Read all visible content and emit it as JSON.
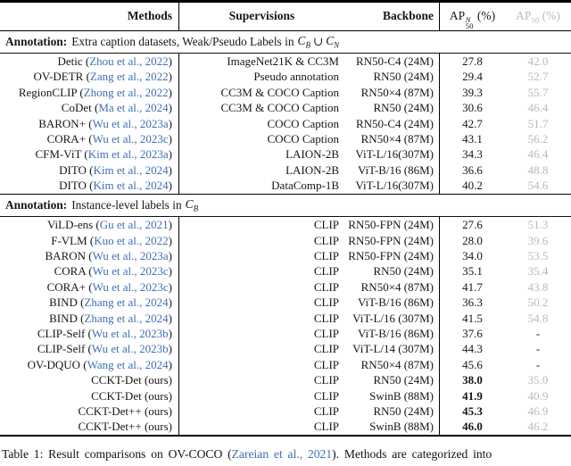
{
  "colors": {
    "citation": "#3e6fb2",
    "muted": "#b9b9b9"
  },
  "header": {
    "methods": "Methods",
    "supervisions": "Supervisions",
    "backbone": "Backbone",
    "ap_novel": {
      "base": "AP",
      "sup": "N",
      "sub": "50",
      "suffix": "(%)"
    },
    "ap_all": {
      "base": "AP",
      "sub": "50",
      "suffix": "(%)"
    }
  },
  "sections": [
    {
      "label": "Annotation:",
      "text": "Extra caption datasets, Weak/Pseudo Labels in",
      "math_tokens": [
        {
          "t": "var",
          "v": "C",
          "s": "B"
        },
        {
          "t": "op",
          "v": "∪"
        },
        {
          "t": "var",
          "v": "C",
          "s": "N"
        }
      ],
      "rows": [
        {
          "method_pre": "Detic (",
          "citation": "Zhou et al., 2022",
          "method_post": ")",
          "supervision": "ImageNet21K & CC3M",
          "backbone": "RN50-C4 (24M)",
          "ap_novel": "27.8",
          "ap_all": "42.0",
          "bold_novel": false
        },
        {
          "method_pre": "OV-DETR (",
          "citation": "Zang et al., 2022",
          "method_post": ")",
          "supervision": "Pseudo annotation",
          "backbone": "RN50 (24M)",
          "ap_novel": "29.4",
          "ap_all": "52.7",
          "bold_novel": false
        },
        {
          "method_pre": "RegionCLIP (",
          "citation": "Zhong et al., 2022",
          "method_post": ")",
          "supervision": "CC3M & COCO Caption",
          "backbone": "RN50×4 (87M)",
          "ap_novel": "39.3",
          "ap_all": "55.7",
          "bold_novel": false
        },
        {
          "method_pre": "CoDet (",
          "citation": "Ma et al., 2024",
          "method_post": ")",
          "supervision": "CC3M & COCO Caption",
          "backbone": "RN50 (24M)",
          "ap_novel": "30.6",
          "ap_all": "46.4",
          "bold_novel": false
        },
        {
          "method_pre": "BARON+ (",
          "citation": "Wu et al., 2023a",
          "method_post": ")",
          "supervision": "COCO Caption",
          "backbone": "RN50-C4 (24M)",
          "ap_novel": "42.7",
          "ap_all": "51.7",
          "bold_novel": false
        },
        {
          "method_pre": "CORA+ (",
          "citation": "Wu et al., 2023c",
          "method_post": ")",
          "supervision": "COCO Caption",
          "backbone": "RN50×4 (87M)",
          "ap_novel": "43.1",
          "ap_all": "56.2",
          "bold_novel": false
        },
        {
          "method_pre": "CFM-ViT (",
          "citation": "Kim et al., 2023a",
          "method_post": ")",
          "supervision": "LAION-2B",
          "backbone": "ViT-L/16(307M)",
          "ap_novel": "34.3",
          "ap_all": "46.4",
          "bold_novel": false
        },
        {
          "method_pre": "DITO (",
          "citation": "Kim et al., 2024",
          "method_post": ")",
          "supervision": "LAION-2B",
          "backbone": "ViT-B/16 (86M)",
          "ap_novel": "36.6",
          "ap_all": "48.8",
          "bold_novel": false
        },
        {
          "method_pre": "DITO (",
          "citation": "Kim et al., 2024",
          "method_post": ")",
          "supervision": "DataComp-1B",
          "backbone": "ViT-L/16(307M)",
          "ap_novel": "40.2",
          "ap_all": "54.6",
          "bold_novel": false
        }
      ]
    },
    {
      "label": "Annotation:",
      "text": "Instance-level labels in",
      "math_tokens": [
        {
          "t": "var",
          "v": "C",
          "s": "B"
        }
      ],
      "rows": [
        {
          "method_pre": "ViLD-ens (",
          "citation": "Gu et al., 2021",
          "method_post": ")",
          "supervision": "CLIP",
          "backbone": "RN50-FPN (24M)",
          "ap_novel": "27.6",
          "ap_all": "51.3",
          "bold_novel": false
        },
        {
          "method_pre": "F-VLM (",
          "citation": "Kuo et al., 2022",
          "method_post": ")",
          "supervision": "CLIP",
          "backbone": "RN50-FPN (24M)",
          "ap_novel": "28.0",
          "ap_all": "39.6",
          "bold_novel": false
        },
        {
          "method_pre": "BARON (",
          "citation": "Wu et al., 2023a",
          "method_post": ")",
          "supervision": "CLIP",
          "backbone": "RN50-FPN (24M)",
          "ap_novel": "34.0",
          "ap_all": "53.5",
          "bold_novel": false
        },
        {
          "method_pre": "CORA (",
          "citation": "Wu et al., 2023c",
          "method_post": ")",
          "supervision": "CLIP",
          "backbone": "RN50 (24M)",
          "ap_novel": "35.1",
          "ap_all": "35.4",
          "bold_novel": false
        },
        {
          "method_pre": "CORA+ (",
          "citation": "Wu et al., 2023c",
          "method_post": ")",
          "supervision": "CLIP",
          "backbone": "RN50×4 (87M)",
          "ap_novel": "41.7",
          "ap_all": "43.8",
          "bold_novel": false
        },
        {
          "method_pre": "BIND (",
          "citation": "Zhang et al., 2024",
          "method_post": ")",
          "supervision": "CLIP",
          "backbone": "ViT-B/16 (86M)",
          "ap_novel": "36.3",
          "ap_all": "50.2",
          "bold_novel": false
        },
        {
          "method_pre": "BIND (",
          "citation": "Zhang et al., 2024",
          "method_post": ")",
          "supervision": "CLIP",
          "backbone": "ViT-L/16 (307M)",
          "ap_novel": "41.5",
          "ap_all": "54.8",
          "bold_novel": false
        },
        {
          "method_pre": "CLIP-Self (",
          "citation": "Wu et al., 2023b",
          "method_post": ")",
          "supervision": "CLIP",
          "backbone": "ViT-B/16 (86M)",
          "ap_novel": "37.6",
          "ap_all": "-",
          "bold_novel": false
        },
        {
          "method_pre": "CLIP-Self (",
          "citation": "Wu et al., 2023b",
          "method_post": ")",
          "supervision": "CLIP",
          "backbone": "ViT-L/14 (307M)",
          "ap_novel": "44.3",
          "ap_all": "-",
          "bold_novel": false
        },
        {
          "method_pre": "OV-DQUO (",
          "citation": "Wang et al., 2024",
          "method_post": ")",
          "supervision": "CLIP",
          "backbone": "RN50×4 (87M)",
          "ap_novel": "45.6",
          "ap_all": "-",
          "bold_novel": false
        },
        {
          "method_pre": "CCKT-Det (ours)",
          "citation": "",
          "method_post": "",
          "supervision": "CLIP",
          "backbone": "RN50 (24M)",
          "ap_novel": "38.0",
          "ap_all": "35.0",
          "bold_novel": true
        },
        {
          "method_pre": "CCKT-Det (ours)",
          "citation": "",
          "method_post": "",
          "supervision": "CLIP",
          "backbone": "SwinB (88M)",
          "ap_novel": "41.9",
          "ap_all": "40.9",
          "bold_novel": true
        },
        {
          "method_pre": "CCKT-Det++ (ours)",
          "citation": "",
          "method_post": "",
          "supervision": "CLIP",
          "backbone": "RN50 (24M)",
          "ap_novel": "45.3",
          "ap_all": "46.9",
          "bold_novel": true
        },
        {
          "method_pre": "CCKT-Det++ (ours)",
          "citation": "",
          "method_post": "",
          "supervision": "CLIP",
          "backbone": "SwinB (88M)",
          "ap_novel": "46.0",
          "ap_all": "46.2",
          "bold_novel": true
        }
      ]
    }
  ],
  "caption": {
    "pre": "Table 1:  Result comparisons on OV-COCO (",
    "citation": "Zareian et al., 2021",
    "post": ").  Methods are categorized into"
  }
}
